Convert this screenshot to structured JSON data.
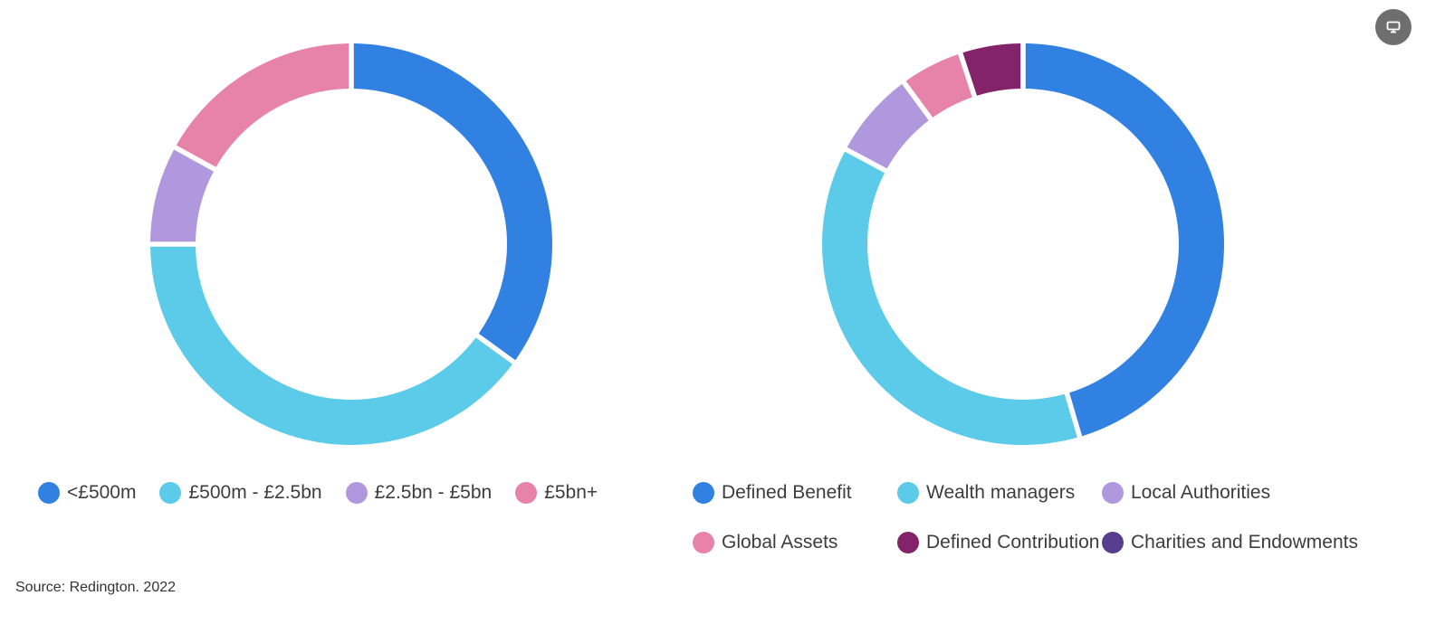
{
  "chart_data": [
    {
      "type": "pie",
      "variant": "donut",
      "start_angle": "12 o'clock, clockwise",
      "categories": [
        "<£500m",
        "£500m - £2.5bn",
        "£2.5bn - £5bn",
        "£5bn+"
      ],
      "values": [
        35,
        40,
        8,
        17
      ],
      "colors": [
        "#3181e2",
        "#5bcbe9",
        "#af98de",
        "#e782a9"
      ],
      "legend_position": "bottom"
    },
    {
      "type": "pie",
      "variant": "donut",
      "start_angle": "12 o'clock, clockwise",
      "categories": [
        "Defined Benefit",
        "Wealth managers",
        "Local Authorities",
        "Global Assets",
        "Defined Contribution",
        "Charities and Endowments"
      ],
      "values": [
        45,
        37,
        7,
        5,
        5,
        0
      ],
      "colors": [
        "#3181e2",
        "#5bcbe9",
        "#af98de",
        "#e782a9",
        "#83236a",
        "#573e8f"
      ],
      "legend_position": "bottom"
    }
  ],
  "source": "Source: Redington. 2022",
  "corner_button_icon": "monitor-icon"
}
